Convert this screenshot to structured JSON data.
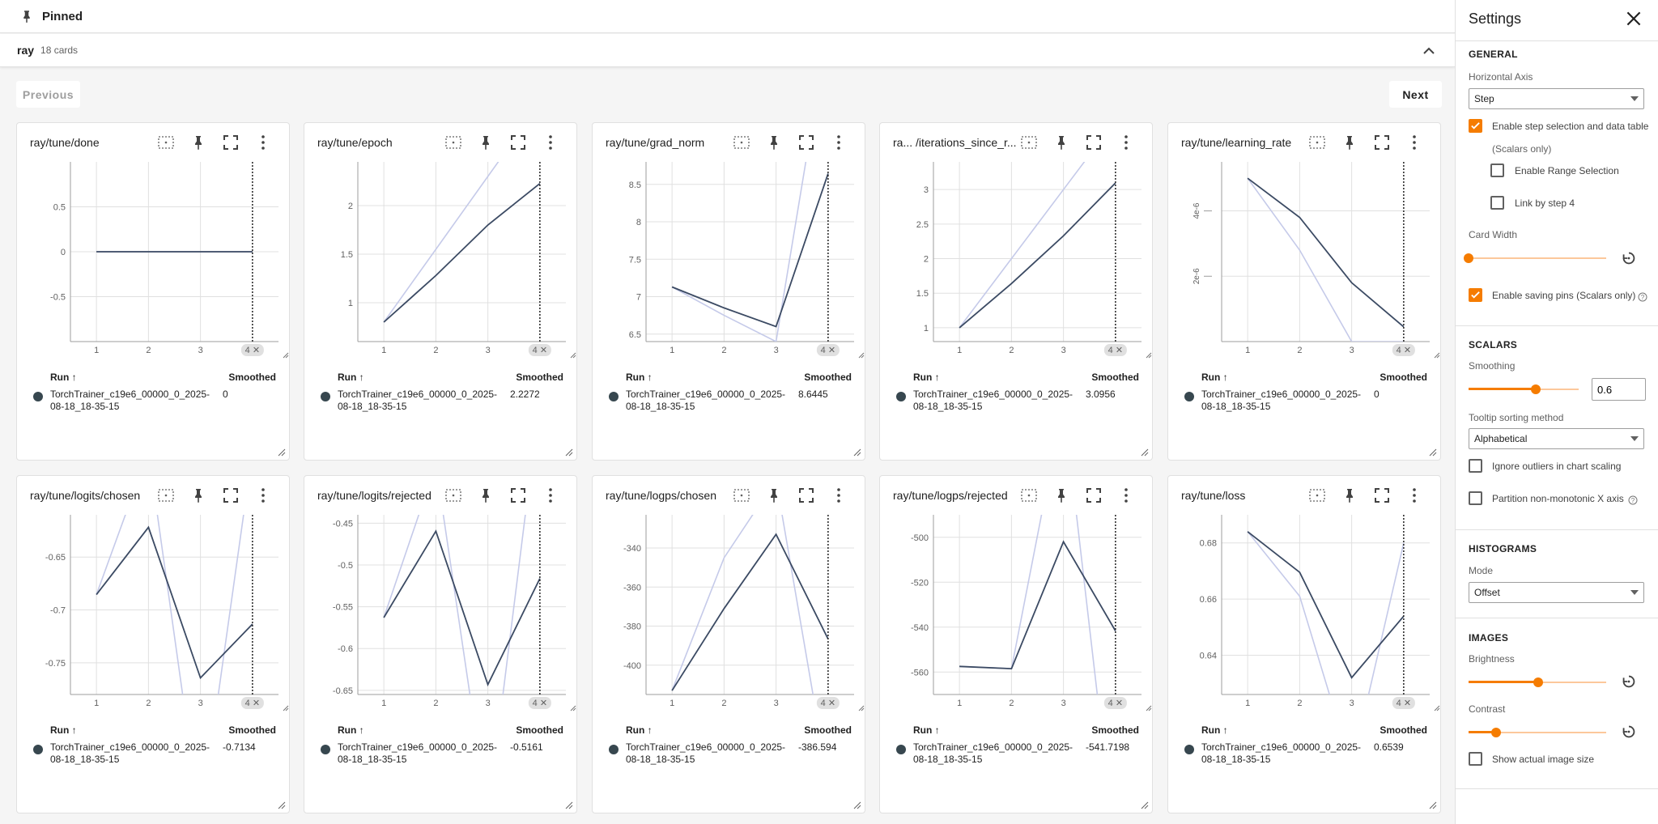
{
  "pinned": {
    "title": "Pinned"
  },
  "group": {
    "name": "ray",
    "count": "18 cards"
  },
  "pager": {
    "previous": "Previous",
    "next": "Next"
  },
  "card_common": {
    "run_header": "Run ↑",
    "smoothed_header": "Smoothed",
    "step_marker": "4 ✕"
  },
  "cards": [
    {
      "title": "ray/tune/done",
      "run_name": "TorchTrainer_c19e6_00000_0_2025-08-18_18-35-15",
      "smoothed_value": "0"
    },
    {
      "title": "ray/tune/epoch",
      "run_name": "TorchTrainer_c19e6_00000_0_2025-08-18_18-35-15",
      "smoothed_value": "2.2272"
    },
    {
      "title": "ray/tune/grad_norm",
      "run_name": "TorchTrainer_c19e6_00000_0_2025-08-18_18-35-15",
      "smoothed_value": "8.6445"
    },
    {
      "title": "ra... /iterations_since_r...",
      "run_name": "TorchTrainer_c19e6_00000_0_2025-08-18_18-35-15",
      "smoothed_value": "3.0956"
    },
    {
      "title": "ray/tune/learning_rate",
      "run_name": "TorchTrainer_c19e6_00000_0_2025-08-18_18-35-15",
      "smoothed_value": "0"
    },
    {
      "title": "ray/tune/logits/chosen",
      "run_name": "TorchTrainer_c19e6_00000_0_2025-08-18_18-35-15",
      "smoothed_value": "-0.7134"
    },
    {
      "title": "ray/tune/logits/rejected",
      "run_name": "TorchTrainer_c19e6_00000_0_2025-08-18_18-35-15",
      "smoothed_value": "-0.5161"
    },
    {
      "title": "ray/tune/logps/chosen",
      "run_name": "TorchTrainer_c19e6_00000_0_2025-08-18_18-35-15",
      "smoothed_value": "-386.594"
    },
    {
      "title": "ray/tune/logps/rejected",
      "run_name": "TorchTrainer_c19e6_00000_0_2025-08-18_18-35-15",
      "smoothed_value": "-541.7198"
    },
    {
      "title": "ray/tune/loss",
      "run_name": "TorchTrainer_c19e6_00000_0_2025-08-18_18-35-15",
      "smoothed_value": "0.6539"
    }
  ],
  "chart_data": [
    {
      "type": "line",
      "title": "ray/tune/done",
      "xlim": [
        0.5,
        4.5
      ],
      "ylim": [
        -1.0,
        1.0
      ],
      "x_ticks": [
        1,
        2,
        3
      ],
      "y_ticks": [
        0.5,
        0,
        -0.5
      ],
      "y_tick_labels": [
        "0.5",
        "0",
        "-0.5"
      ],
      "series": [
        {
          "values": [
            [
              1,
              0
            ],
            [
              2,
              0
            ],
            [
              3,
              0
            ],
            [
              4,
              0
            ]
          ]
        },
        {
          "values": [
            [
              1,
              0
            ],
            [
              2,
              0
            ],
            [
              3,
              0
            ],
            [
              4,
              0
            ]
          ]
        }
      ]
    },
    {
      "type": "line",
      "title": "ray/tune/epoch",
      "xlim": [
        0.5,
        4.5
      ],
      "ylim": [
        0.6,
        2.45
      ],
      "x_ticks": [
        1,
        2,
        3
      ],
      "y_ticks": [
        2,
        1.5,
        1
      ],
      "y_tick_labels": [
        "2",
        "1.5",
        "1"
      ],
      "series": [
        {
          "values": [
            [
              1,
              0.8
            ],
            [
              2,
              1.55
            ],
            [
              3,
              2.3
            ],
            [
              4,
              3.05
            ]
          ]
        },
        {
          "values": [
            [
              1,
              0.8
            ],
            [
              2,
              1.28
            ],
            [
              3,
              1.8
            ],
            [
              4,
              2.2272
            ]
          ]
        }
      ]
    },
    {
      "type": "line",
      "title": "ray/tune/grad_norm",
      "xlim": [
        0.5,
        4.5
      ],
      "ylim": [
        6.4,
        8.8
      ],
      "x_ticks": [
        1,
        2,
        3
      ],
      "y_ticks": [
        8.5,
        8,
        7.5,
        7,
        6.5
      ],
      "y_tick_labels": [
        "8.5",
        "8",
        "7.5",
        "7",
        "6.5"
      ],
      "series": [
        {
          "values": [
            [
              1,
              7.13
            ],
            [
              2,
              6.75
            ],
            [
              3,
              6.4
            ],
            [
              4,
              10.6
            ]
          ]
        },
        {
          "values": [
            [
              1,
              7.13
            ],
            [
              2,
              6.85
            ],
            [
              3,
              6.6
            ],
            [
              4,
              8.6445
            ]
          ]
        }
      ]
    },
    {
      "type": "line",
      "title": "ra... /iterations_since_r...",
      "xlim": [
        0.5,
        4.5
      ],
      "ylim": [
        0.8,
        3.4
      ],
      "x_ticks": [
        1,
        2,
        3
      ],
      "y_ticks": [
        3,
        2.5,
        2,
        1.5,
        1
      ],
      "y_tick_labels": [
        "3",
        "2.5",
        "2",
        "1.5",
        "1"
      ],
      "series": [
        {
          "values": [
            [
              1,
              1
            ],
            [
              2,
              2
            ],
            [
              3,
              3
            ],
            [
              4,
              4
            ]
          ]
        },
        {
          "values": [
            [
              1,
              1
            ],
            [
              2,
              1.64
            ],
            [
              3,
              2.33
            ],
            [
              4,
              3.0956
            ]
          ]
        }
      ]
    },
    {
      "type": "line",
      "title": "ray/tune/learning_rate",
      "xlim": [
        0.5,
        4.5
      ],
      "ylim": [
        0,
        5.5
      ],
      "x_ticks": [
        1,
        2,
        3
      ],
      "y_ticks": [
        4,
        2
      ],
      "y_tick_labels": [
        "4e-6",
        "2e-6"
      ],
      "series": [
        {
          "values": [
            [
              1,
              5.0
            ],
            [
              2,
              2.8
            ],
            [
              3,
              0
            ],
            [
              4,
              0
            ]
          ]
        },
        {
          "values": [
            [
              1,
              5.0
            ],
            [
              2,
              3.8
            ],
            [
              3,
              1.8
            ],
            [
              4,
              0.45
            ]
          ]
        }
      ]
    },
    {
      "type": "line",
      "title": "ray/tune/logits/chosen",
      "xlim": [
        0.5,
        4.5
      ],
      "ylim": [
        -0.78,
        -0.61
      ],
      "x_ticks": [
        1,
        2,
        3
      ],
      "y_ticks": [
        -0.65,
        -0.7,
        -0.75
      ],
      "y_tick_labels": [
        "-0.65",
        "-0.7",
        "-0.75"
      ],
      "series": [
        {
          "values": [
            [
              1,
              -0.6855
            ],
            [
              2,
              -0.55
            ],
            [
              3,
              -0.9
            ],
            [
              4,
              -0.55
            ]
          ]
        },
        {
          "values": [
            [
              1,
              -0.6855
            ],
            [
              2,
              -0.6218
            ],
            [
              3,
              -0.7643
            ],
            [
              4,
              -0.7134
            ]
          ]
        }
      ]
    },
    {
      "type": "line",
      "title": "ray/tune/logits/rejected",
      "xlim": [
        0.5,
        4.5
      ],
      "ylim": [
        -0.655,
        -0.44
      ],
      "x_ticks": [
        1,
        2,
        3
      ],
      "y_ticks": [
        -0.45,
        -0.5,
        -0.55,
        -0.6,
        -0.65
      ],
      "y_tick_labels": [
        "-0.45",
        "-0.5",
        "-0.55",
        "-0.6",
        "-0.65"
      ],
      "series": [
        {
          "values": [
            [
              1,
              -0.563
            ],
            [
              2,
              -0.38
            ],
            [
              3,
              -0.8
            ],
            [
              4,
              -0.3
            ]
          ]
        },
        {
          "values": [
            [
              1,
              -0.563
            ],
            [
              2,
              -0.4596
            ],
            [
              3,
              -0.6432
            ],
            [
              4,
              -0.5161
            ]
          ]
        }
      ]
    },
    {
      "type": "line",
      "title": "ray/tune/logps/chosen",
      "xlim": [
        0.5,
        4.5
      ],
      "ylim": [
        -415,
        -323
      ],
      "x_ticks": [
        1,
        2,
        3
      ],
      "y_ticks": [
        -340,
        -360,
        -380,
        -400
      ],
      "y_tick_labels": [
        "-340",
        "-360",
        "-380",
        "-400"
      ],
      "series": [
        {
          "values": [
            [
              1,
              -413
            ],
            [
              2,
              -345
            ],
            [
              3,
              -305
            ],
            [
              4,
              -460
            ]
          ]
        },
        {
          "values": [
            [
              1,
              -413
            ],
            [
              2,
              -371
            ],
            [
              3,
              -333
            ],
            [
              4,
              -386.594
            ]
          ]
        }
      ]
    },
    {
      "type": "line",
      "title": "ray/tune/logps/rejected",
      "xlim": [
        0.5,
        4.5
      ],
      "ylim": [
        -570,
        -490
      ],
      "x_ticks": [
        1,
        2,
        3
      ],
      "y_ticks": [
        -500,
        -520,
        -540,
        -560
      ],
      "y_tick_labels": [
        "-500",
        "-520",
        "-540",
        "-560"
      ],
      "series": [
        {
          "values": [
            [
              1,
              -557.5
            ],
            [
              2,
              -558.5
            ],
            [
              3,
              -440
            ],
            [
              4,
              -640
            ]
          ]
        },
        {
          "values": [
            [
              1,
              -557.5
            ],
            [
              2,
              -558.5
            ],
            [
              3,
              -502
            ],
            [
              4,
              -541.7198
            ]
          ]
        }
      ]
    },
    {
      "type": "line",
      "title": "ray/tune/loss",
      "xlim": [
        0.5,
        4.5
      ],
      "ylim": [
        0.626,
        0.69
      ],
      "x_ticks": [
        1,
        2,
        3
      ],
      "y_ticks": [
        0.68,
        0.66,
        0.64
      ],
      "y_tick_labels": [
        "0.68",
        "0.66",
        "0.64"
      ],
      "series": [
        {
          "values": [
            [
              1,
              0.684
            ],
            [
              2,
              0.661
            ],
            [
              3,
              0.6
            ],
            [
              4,
              0.68
            ]
          ]
        },
        {
          "values": [
            [
              1,
              0.684
            ],
            [
              2,
              0.6695
            ],
            [
              3,
              0.632
            ],
            [
              4,
              0.6539
            ]
          ]
        }
      ]
    }
  ],
  "colors": {
    "accent": "#f57c00",
    "run": "#37474f",
    "raw_line": "#c5cae9",
    "smoothed_line": "#3b4a63"
  },
  "settings": {
    "title": "Settings",
    "general": {
      "heading": "GENERAL",
      "horizontal_axis_label": "Horizontal Axis",
      "horizontal_axis_value": "Step",
      "step_selection_label": "Enable step selection and data table",
      "scalars_only_note": "(Scalars only)",
      "range_selection_label": "Enable Range Selection",
      "link_by_step_label": "Link by step 4",
      "card_width_label": "Card Width",
      "saving_pins_label": "Enable saving pins (Scalars only)"
    },
    "scalars": {
      "heading": "SCALARS",
      "smoothing_label": "Smoothing",
      "smoothing_value": "0.6",
      "tooltip_sort_label": "Tooltip sorting method",
      "tooltip_sort_value": "Alphabetical",
      "ignore_outliers_label": "Ignore outliers in chart scaling",
      "partition_label": "Partition non-monotonic X axis"
    },
    "histograms": {
      "heading": "HISTOGRAMS",
      "mode_label": "Mode",
      "mode_value": "Offset"
    },
    "images": {
      "heading": "IMAGES",
      "brightness_label": "Brightness",
      "contrast_label": "Contrast",
      "actual_size_label": "Show actual image size"
    }
  }
}
